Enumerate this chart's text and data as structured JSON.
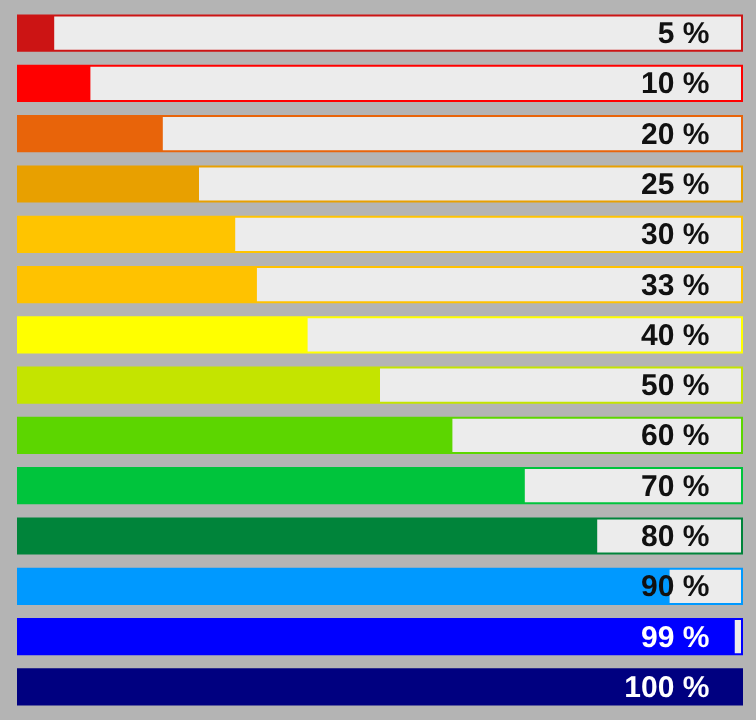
{
  "chart_data": {
    "type": "bar",
    "orientation": "horizontal",
    "categories": [
      null,
      null,
      null,
      null,
      null,
      null,
      null,
      null,
      null,
      null,
      null,
      null,
      null,
      null
    ],
    "values": [
      5,
      10,
      20,
      25,
      30,
      33,
      40,
      50,
      60,
      70,
      80,
      90,
      99,
      100
    ],
    "colors": [
      "#cc1414",
      "#ff0000",
      "#e8640a",
      "#e8a000",
      "#ffc400",
      "#ffc200",
      "#ffff00",
      "#c4e400",
      "#5cd600",
      "#00c43c",
      "#00843a",
      "#0099ff",
      "#0000ff",
      "#000080"
    ],
    "value_labels": [
      "5 %",
      "10 %",
      "20 %",
      "25 %",
      "30 %",
      "33 %",
      "40 %",
      "50 %",
      "60 %",
      "70 %",
      "80 %",
      "90 %",
      "99 %",
      "100 %"
    ],
    "xlim": [
      0,
      100
    ],
    "tick_labels": false
  }
}
